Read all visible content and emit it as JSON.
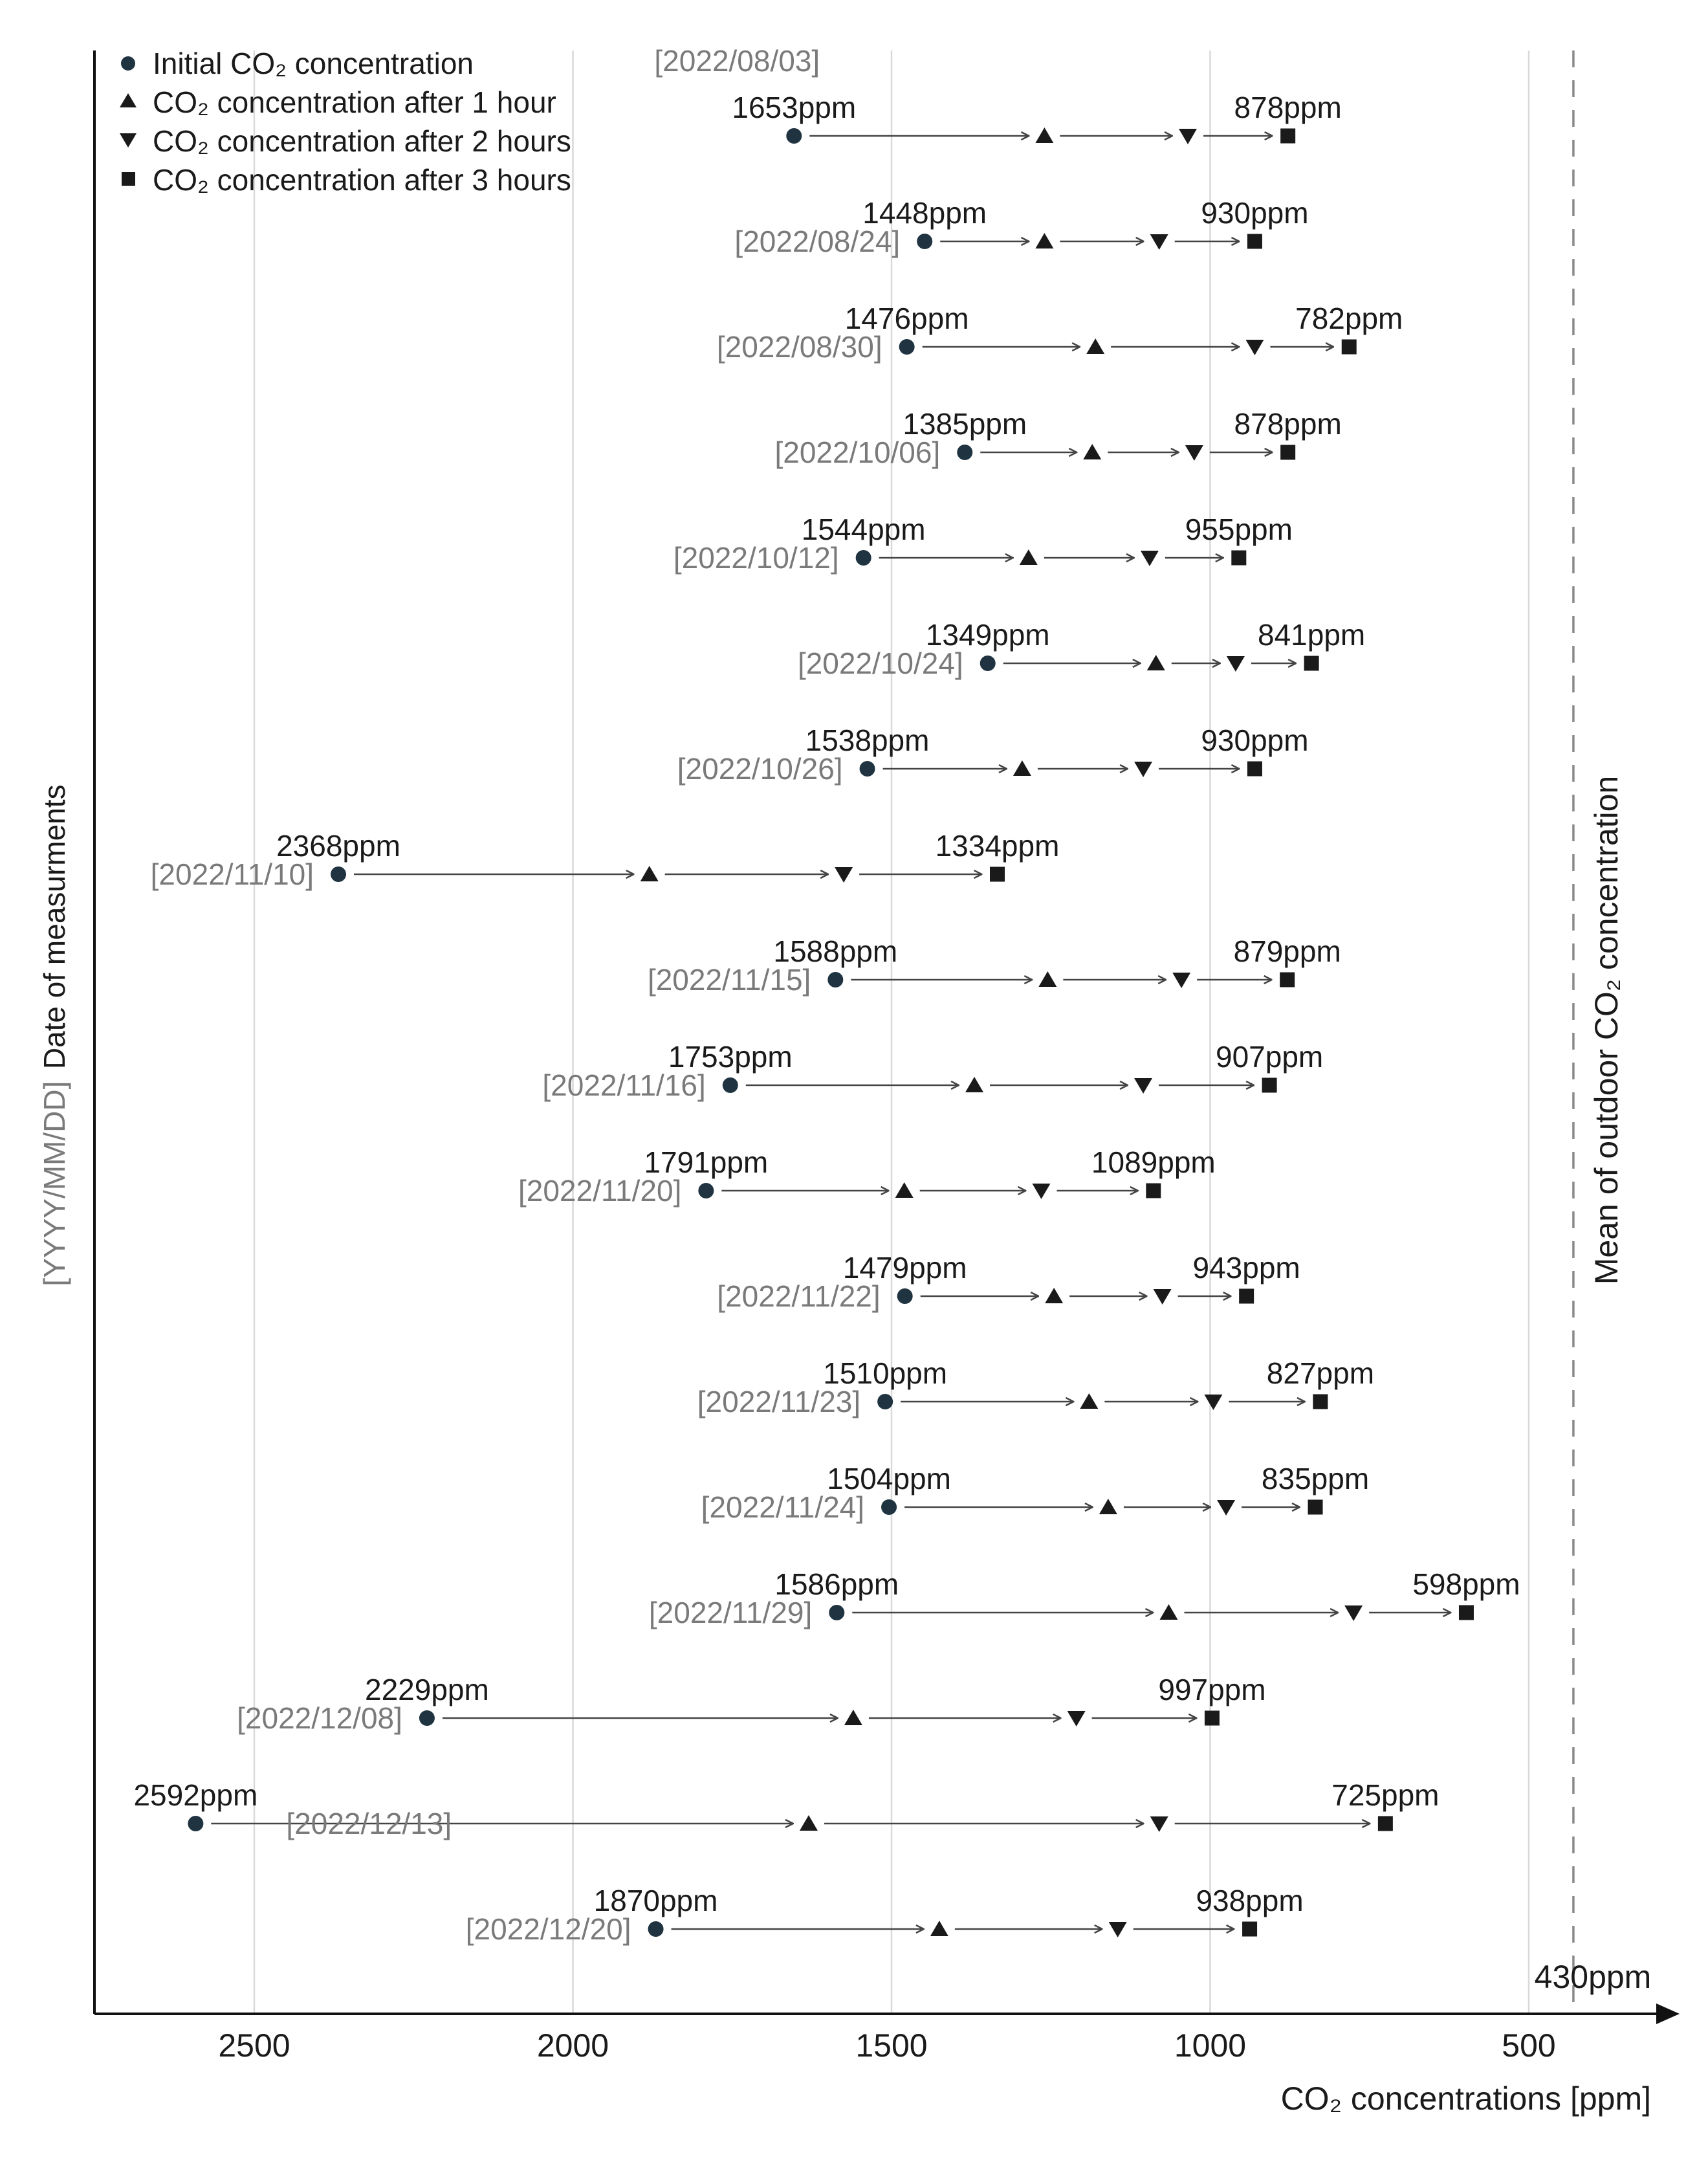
{
  "chart_data": {
    "type": "scatter",
    "x_axis": {
      "label": "CO₂ concentrations [ppm]",
      "ticks": [
        2500,
        2000,
        1500,
        1000,
        500
      ],
      "range": [
        2750,
        200
      ],
      "reversed": true
    },
    "y_axis": {
      "label_date": "Date of measurments",
      "label_format": "[YYYY/MM/DD]"
    },
    "grid": true,
    "legend": {
      "placement": "top-left",
      "entries": [
        {
          "marker": "circle",
          "label": "Initial CO₂ concentration"
        },
        {
          "marker": "triangle-up",
          "label": "CO₂ concentration after 1 hour"
        },
        {
          "marker": "triangle-down",
          "label": "CO₂ concentration after 2 hours"
        },
        {
          "marker": "square",
          "label": "CO₂ concentration after 3 hours"
        }
      ]
    },
    "reference_line": {
      "value": 430,
      "value_label": "430ppm",
      "label": "Mean of outdoor CO₂ concentration",
      "style": "dashed"
    },
    "rows": [
      {
        "date": "[2022/08/03]",
        "initial": 1653,
        "h1": 1260,
        "h2": 1035,
        "h3": 878,
        "initial_label": "1653ppm",
        "final_label": "878ppm"
      },
      {
        "date": "[2022/08/24]",
        "initial": 1448,
        "h1": 1260,
        "h2": 1080,
        "h3": 930,
        "initial_label": "1448ppm",
        "final_label": "930ppm"
      },
      {
        "date": "[2022/08/30]",
        "initial": 1476,
        "h1": 1180,
        "h2": 930,
        "h3": 782,
        "initial_label": "1476ppm",
        "final_label": "782ppm"
      },
      {
        "date": "[2022/10/06]",
        "initial": 1385,
        "h1": 1185,
        "h2": 1025,
        "h3": 878,
        "initial_label": "1385ppm",
        "final_label": "878ppm"
      },
      {
        "date": "[2022/10/12]",
        "initial": 1544,
        "h1": 1285,
        "h2": 1095,
        "h3": 955,
        "initial_label": "1544ppm",
        "final_label": "955ppm"
      },
      {
        "date": "[2022/10/24]",
        "initial": 1349,
        "h1": 1085,
        "h2": 960,
        "h3": 841,
        "initial_label": "1349ppm",
        "final_label": "841ppm"
      },
      {
        "date": "[2022/10/26]",
        "initial": 1538,
        "h1": 1295,
        "h2": 1105,
        "h3": 930,
        "initial_label": "1538ppm",
        "final_label": "930ppm"
      },
      {
        "date": "[2022/11/10]",
        "initial": 2368,
        "h1": 1880,
        "h2": 1575,
        "h3": 1334,
        "initial_label": "2368ppm",
        "final_label": "1334ppm"
      },
      {
        "date": "[2022/11/15]",
        "initial": 1588,
        "h1": 1255,
        "h2": 1045,
        "h3": 879,
        "initial_label": "1588ppm",
        "final_label": "879ppm"
      },
      {
        "date": "[2022/11/16]",
        "initial": 1753,
        "h1": 1370,
        "h2": 1105,
        "h3": 907,
        "initial_label": "1753ppm",
        "final_label": "907ppm"
      },
      {
        "date": "[2022/11/20]",
        "initial": 1791,
        "h1": 1480,
        "h2": 1265,
        "h3": 1089,
        "initial_label": "1791ppm",
        "final_label": "1089ppm"
      },
      {
        "date": "[2022/11/22]",
        "initial": 1479,
        "h1": 1245,
        "h2": 1075,
        "h3": 943,
        "initial_label": "1479ppm",
        "final_label": "943ppm"
      },
      {
        "date": "[2022/11/23]",
        "initial": 1510,
        "h1": 1190,
        "h2": 995,
        "h3": 827,
        "initial_label": "1510ppm",
        "final_label": "827ppm"
      },
      {
        "date": "[2022/11/24]",
        "initial": 1504,
        "h1": 1160,
        "h2": 975,
        "h3": 835,
        "initial_label": "1504ppm",
        "final_label": "835ppm"
      },
      {
        "date": "[2022/11/29]",
        "initial": 1586,
        "h1": 1065,
        "h2": 775,
        "h3": 598,
        "initial_label": "1586ppm",
        "final_label": "598ppm"
      },
      {
        "date": "[2022/12/08]",
        "initial": 2229,
        "h1": 1560,
        "h2": 1210,
        "h3": 997,
        "initial_label": "2229ppm",
        "final_label": "997ppm"
      },
      {
        "date": "[2022/12/13]",
        "initial": 2592,
        "h1": 1630,
        "h2": 1080,
        "h3": 725,
        "initial_label": "2592ppm",
        "final_label": "725ppm"
      },
      {
        "date": "[2022/12/20]",
        "initial": 1870,
        "h1": 1425,
        "h2": 1145,
        "h3": 938,
        "initial_label": "1870ppm",
        "final_label": "938ppm"
      }
    ]
  },
  "colors": {
    "initial_marker": "#1f3341",
    "marker": "#1a1a1a",
    "arrow": "#444444",
    "grid": "#d9d9d9",
    "axis": "#111111",
    "date_text": "#7a7a7a",
    "reference_line": "#888888"
  }
}
